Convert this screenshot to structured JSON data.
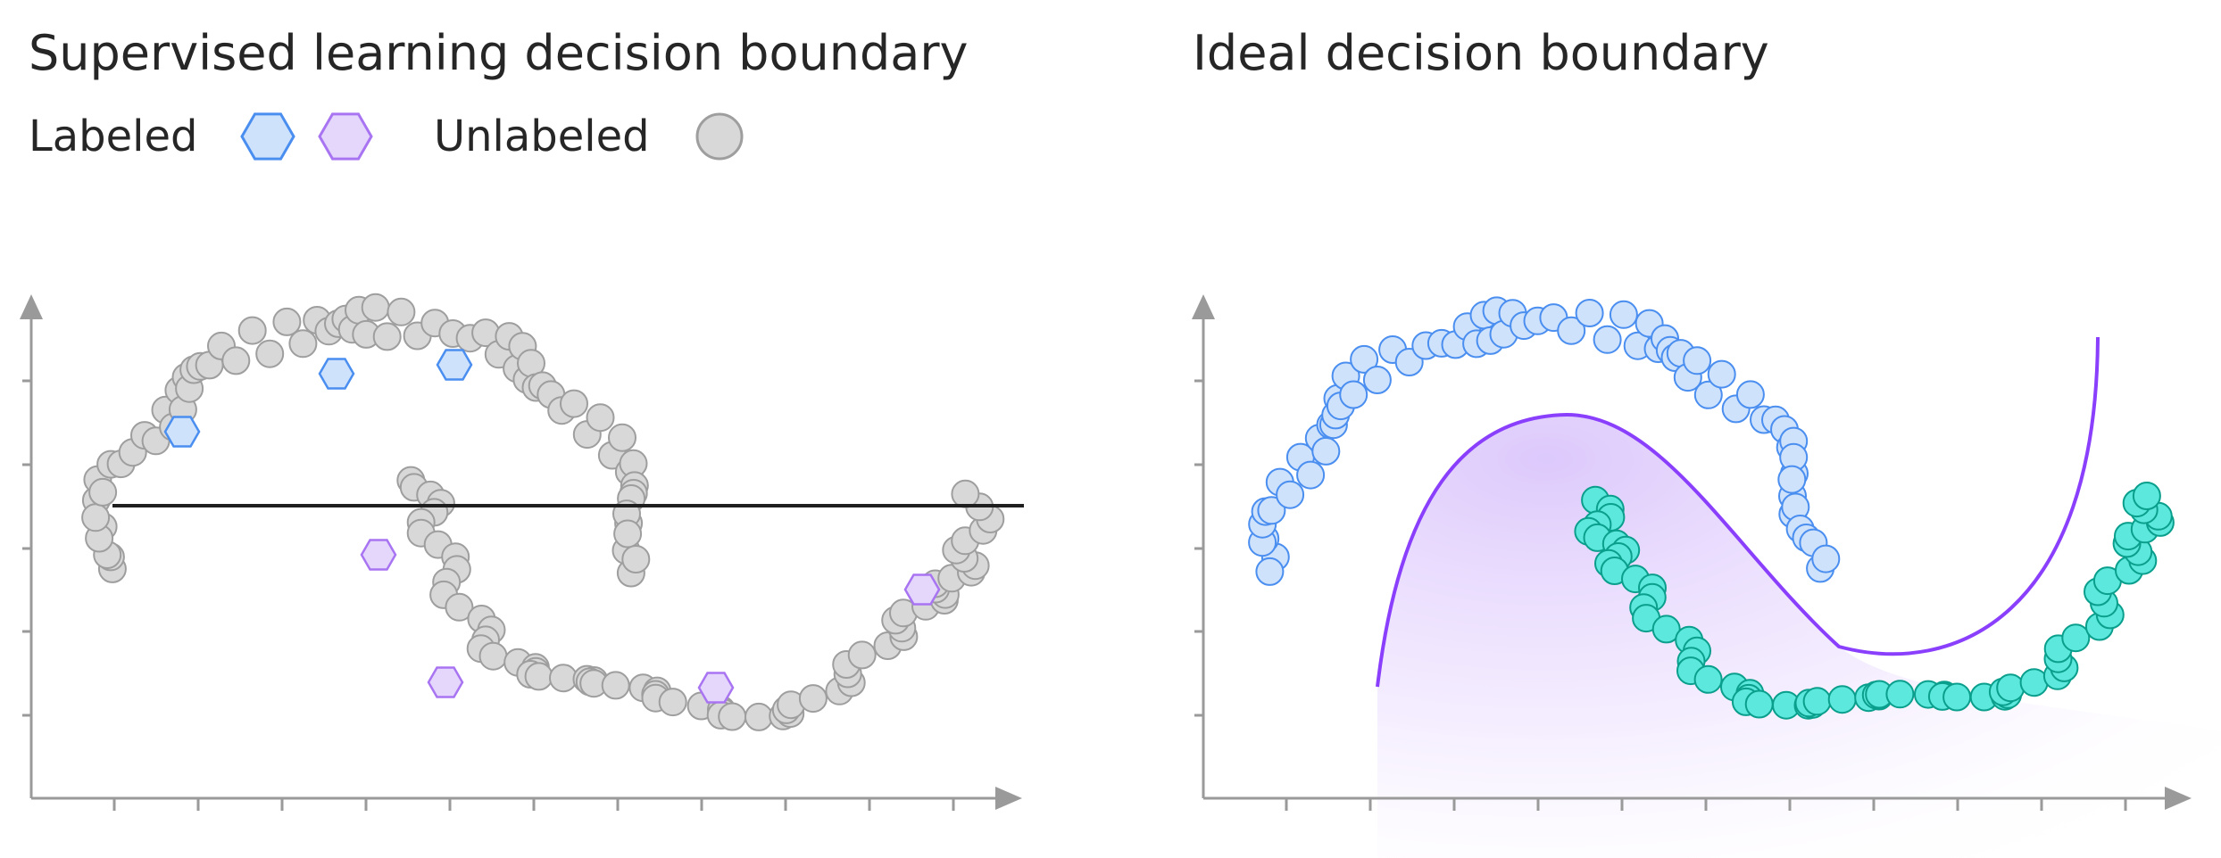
{
  "left_panel": {
    "title": "Supervised learning decision boundary",
    "legend": {
      "labeled_label": "Labeled",
      "unlabeled_label": "Unlabeled"
    }
  },
  "right_panel": {
    "title": "Ideal decision boundary"
  },
  "colors": {
    "unlabeled_fill": "#d8d8d8",
    "unlabeled_stroke": "#9e9e9e",
    "blue_fill": "#cfe2fb",
    "blue_stroke": "#4a8ef0",
    "purple_fill": "#e5d6fb",
    "purple_stroke": "#a874f2",
    "teal_fill": "#5ce8dc",
    "teal_stroke": "#0a9e8c",
    "boundary_purple": "#8a3ffc",
    "axis": "#9a9a9a",
    "supervised_line": "#1f1f1f"
  },
  "icons": {
    "labeled_class_a": "blue-hexagon-icon",
    "labeled_class_b": "purple-hexagon-icon",
    "unlabeled": "gray-circle-icon"
  }
}
